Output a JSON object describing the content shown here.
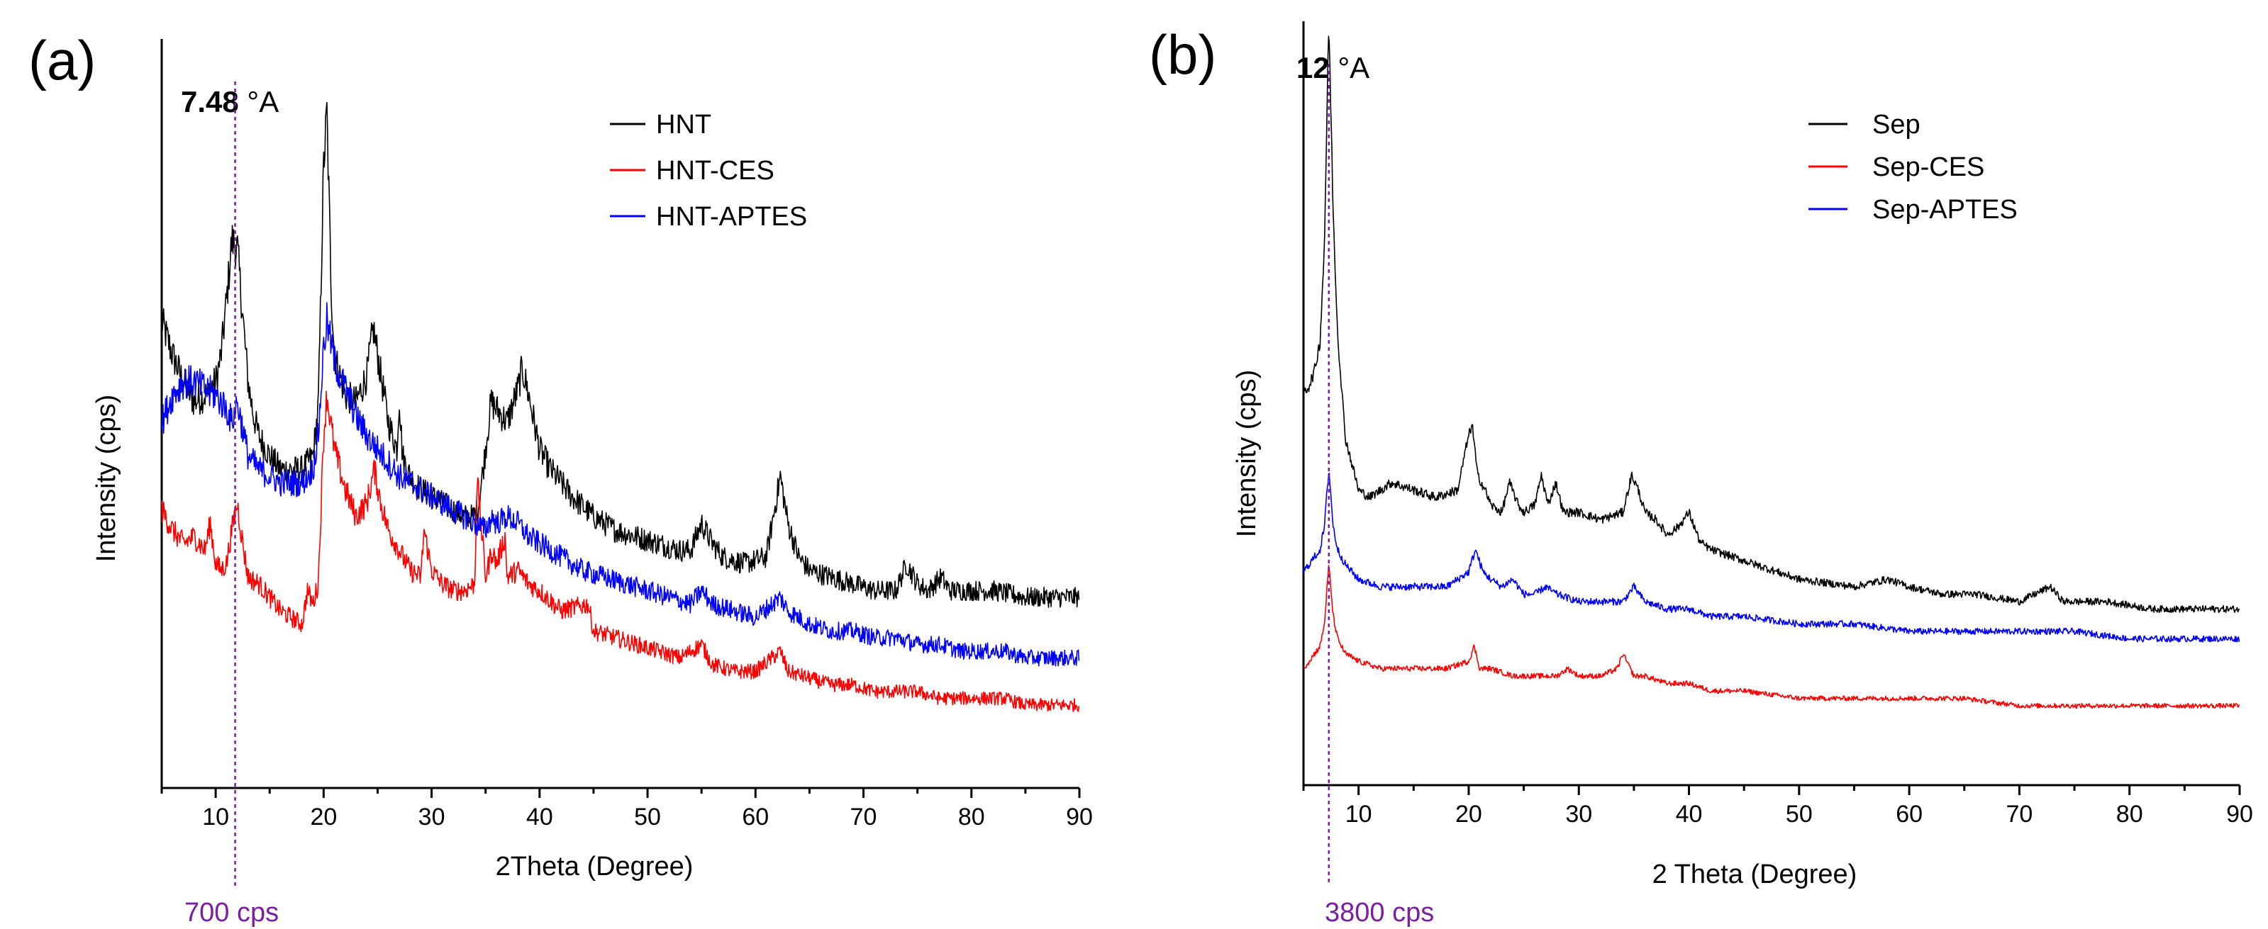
{
  "chart_data": [
    {
      "type": "line",
      "panel_label": "(a)",
      "spacing_value": "7.48",
      "spacing_unit": " °A",
      "marker_x": 11.8,
      "marker_label": "700 cps",
      "xlabel": "2Theta (Degree)",
      "ylabel": "Intensity (cps)",
      "xlim": [
        5,
        90
      ],
      "ylim": [
        0,
        100
      ],
      "xticks": [
        10,
        20,
        30,
        40,
        50,
        60,
        70,
        80,
        90
      ],
      "legend_position": "top-right",
      "series": [
        {
          "name": "HNT",
          "color": "#000000",
          "x": [
            5,
            6,
            7,
            8,
            9,
            10,
            10.5,
            11,
            11.5,
            12,
            12.5,
            13,
            13.5,
            14,
            15,
            16,
            17,
            18,
            19,
            19.5,
            20,
            20.3,
            20.7,
            21,
            22,
            23,
            24,
            24.6,
            25,
            25.6,
            26,
            26.8,
            27,
            27.3,
            28,
            29,
            30,
            31,
            32,
            33,
            33.8,
            34.3,
            35,
            35.5,
            36,
            37,
            38,
            38.4,
            39,
            39.5,
            40,
            41,
            43,
            45,
            47,
            49,
            51,
            53,
            54,
            55,
            56,
            57,
            59,
            61,
            62.3,
            63,
            64,
            65,
            67,
            69,
            71,
            73,
            74,
            75,
            76,
            77.2,
            78,
            80,
            82,
            85,
            88,
            90
          ],
          "values": [
            67,
            62,
            58,
            55,
            56,
            58,
            62,
            70,
            79,
            78,
            68,
            58,
            53,
            50,
            47,
            45,
            45,
            45,
            47,
            54,
            90,
            98,
            72,
            62,
            56,
            55,
            59,
            66,
            62,
            56,
            52,
            48,
            56,
            47,
            44,
            42,
            41,
            40,
            39,
            38,
            38,
            39,
            48,
            55,
            54,
            52,
            57,
            60,
            56,
            52,
            48,
            45,
            41,
            38,
            36,
            35,
            34,
            33,
            33,
            37,
            34,
            32,
            31,
            32,
            44,
            37,
            32,
            30,
            29,
            28,
            27,
            27,
            31,
            28,
            27,
            29,
            27,
            27,
            27,
            26,
            26,
            26
          ]
        },
        {
          "name": "HNT-CES",
          "color": "#ff0000",
          "x": [
            5,
            6,
            7,
            8,
            9,
            9.5,
            10,
            10.5,
            11,
            11.5,
            12,
            12.5,
            13,
            14,
            15,
            16,
            17,
            18,
            18.5,
            19,
            19.5,
            20,
            20.3,
            21,
            22,
            23,
            24,
            24.7,
            25.3,
            26,
            27,
            28,
            29,
            29.3,
            30,
            31,
            32,
            33,
            34,
            34.2,
            35,
            35.6,
            36,
            36.8,
            37,
            38,
            39,
            40,
            42,
            44.5,
            45,
            47,
            49,
            51,
            53,
            55,
            56,
            58,
            60,
            62.3,
            63,
            65,
            67,
            69,
            71,
            73,
            75,
            77,
            79,
            81,
            83,
            85,
            88,
            90
          ],
          "values": [
            39,
            36,
            34,
            35,
            33,
            37,
            31,
            30,
            31,
            36,
            40,
            34,
            29,
            28,
            26,
            24,
            23,
            22,
            27,
            25,
            28,
            50,
            56,
            48,
            42,
            38,
            40,
            45,
            40,
            36,
            33,
            30,
            29,
            36,
            30,
            28,
            27,
            27,
            28,
            44,
            29,
            33,
            31,
            35,
            29,
            30,
            28,
            27,
            24,
            25,
            21,
            20,
            19,
            18,
            17,
            19,
            16,
            15,
            15,
            18,
            15,
            14,
            13,
            13,
            12,
            12,
            12,
            11,
            11,
            11,
            11,
            10,
            10,
            10
          ]
        },
        {
          "name": "HNT-APTES",
          "color": "#0000ff",
          "x": [
            5,
            6,
            7,
            8,
            9,
            10,
            11,
            11.5,
            12,
            12.5,
            13,
            14,
            15,
            16,
            17,
            18,
            19,
            19.5,
            20,
            20.3,
            21,
            22,
            23,
            24,
            25,
            26,
            27,
            28,
            29,
            30,
            31,
            32,
            33,
            34,
            35,
            35.6,
            36,
            37,
            38,
            39,
            40,
            42,
            44,
            46,
            48,
            50,
            52,
            54,
            55,
            56,
            58,
            60,
            62.3,
            63,
            65,
            67,
            69,
            71,
            73,
            75,
            77,
            79,
            81,
            83,
            85,
            88,
            90
          ],
          "values": [
            52,
            56,
            58,
            58,
            57,
            56,
            54,
            52,
            55,
            51,
            47,
            45,
            44,
            43,
            43,
            43,
            45,
            50,
            63,
            67,
            61,
            57,
            53,
            50,
            48,
            46,
            44,
            43,
            42,
            41,
            40,
            39,
            38,
            37,
            36,
            38,
            37,
            38,
            37,
            35,
            34,
            32,
            30,
            29,
            28,
            27,
            26,
            25,
            27,
            25,
            24,
            23,
            26,
            24,
            22,
            21,
            21,
            20,
            20,
            19,
            19,
            18,
            18,
            18,
            17,
            17,
            17
          ]
        }
      ]
    },
    {
      "type": "line",
      "panel_label": "(b)",
      "spacing_value": "12",
      "spacing_unit": " °A",
      "marker_x": 7.3,
      "marker_label": "3800 cps",
      "xlabel": "2 Theta (Degree)",
      "ylabel": "Intensity (cps)",
      "xlim": [
        5,
        90
      ],
      "ylim": [
        0,
        100
      ],
      "xticks": [
        10,
        20,
        30,
        40,
        50,
        60,
        70,
        80,
        90
      ],
      "legend_position": "top-right",
      "series": [
        {
          "name": "Sep",
          "color": "#000000",
          "x": [
            5,
            5.5,
            6,
            6.5,
            6.9,
            7.3,
            7.7,
            8.1,
            8.8,
            10,
            11,
            12,
            13,
            15,
            17,
            19,
            19.8,
            20.3,
            20.8,
            21.5,
            22,
            23,
            23.7,
            24.5,
            25,
            26,
            26.6,
            27.2,
            27.9,
            28.6,
            30,
            32,
            34,
            34.8,
            35.4,
            36,
            37,
            38,
            39,
            40,
            41,
            42,
            44,
            46,
            48,
            50,
            55,
            58,
            60,
            63,
            66,
            70,
            72.8,
            74,
            78,
            82,
            85,
            88,
            90
          ],
          "values": [
            50,
            51,
            53,
            57,
            70,
            100,
            74,
            58,
            44,
            37,
            36,
            37,
            38,
            37,
            36,
            37,
            43,
            46,
            39,
            37,
            35,
            34,
            38,
            35,
            34,
            35,
            39,
            35,
            38,
            34,
            34,
            33,
            34,
            39,
            37,
            34,
            33,
            31,
            32,
            34,
            30,
            29,
            28,
            27,
            26,
            25,
            24,
            25,
            24,
            23,
            23,
            22,
            24,
            22,
            22,
            21,
            21,
            21,
            21
          ]
        },
        {
          "name": "Sep-CES",
          "color": "#ff0000",
          "x": [
            5,
            5.5,
            6,
            6.5,
            6.9,
            7.3,
            7.7,
            8.1,
            8.8,
            10,
            12,
            15,
            18,
            20,
            20.5,
            21,
            22,
            24,
            26,
            28,
            29,
            30,
            32,
            33.5,
            34,
            35,
            36,
            38,
            40,
            42,
            45,
            50,
            55,
            60,
            65,
            70,
            75,
            80,
            85,
            90
          ],
          "values": [
            13,
            14,
            15,
            16,
            19,
            27,
            20,
            17,
            15,
            14,
            13,
            13,
            13,
            14,
            16,
            13,
            13,
            12,
            12,
            12,
            13,
            12,
            12,
            13,
            15,
            12,
            12,
            11,
            11,
            10,
            10,
            9,
            9,
            9,
            9,
            8,
            8,
            8,
            8,
            8
          ]
        },
        {
          "name": "Sep-APTES",
          "color": "#0000ff",
          "x": [
            5,
            5.5,
            6,
            6.5,
            6.9,
            7.3,
            7.7,
            8.1,
            8.8,
            10,
            12,
            15,
            18,
            20,
            20.6,
            21.3,
            22,
            23,
            24,
            25,
            26,
            27,
            28,
            30,
            32,
            34,
            35,
            36,
            38,
            40,
            42,
            45,
            50,
            55,
            60,
            65,
            70,
            75,
            80,
            85,
            90
          ],
          "values": [
            26,
            27,
            28,
            29,
            32,
            40,
            32,
            29,
            27,
            25,
            24,
            24,
            24,
            26,
            29,
            26,
            25,
            24,
            25,
            23,
            23,
            24,
            23,
            22,
            22,
            22,
            24,
            22,
            21,
            21,
            20,
            20,
            19,
            19,
            18,
            18,
            18,
            18,
            17,
            17,
            17
          ]
        }
      ]
    }
  ]
}
